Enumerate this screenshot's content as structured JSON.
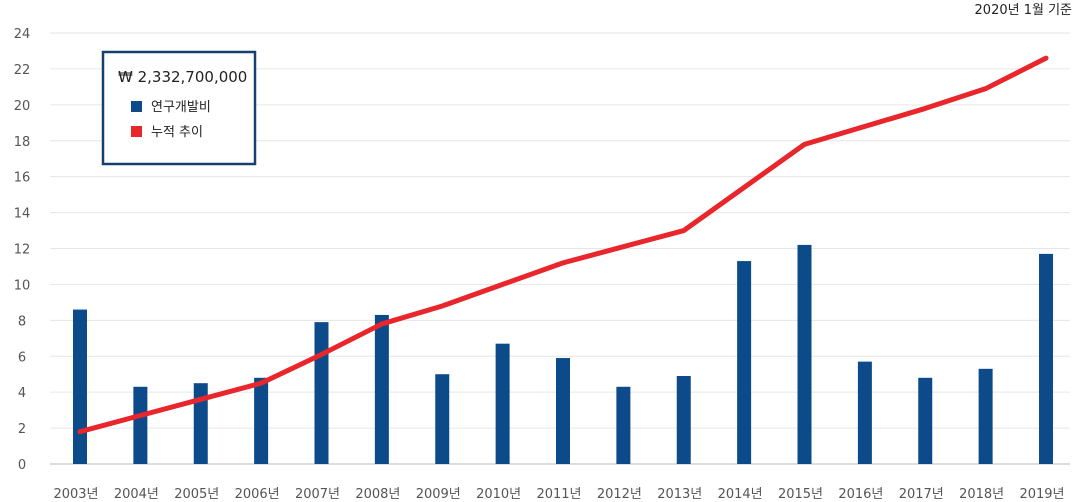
{
  "note": "2020년 1월 기준",
  "chart_data": {
    "type": "bar",
    "categories": [
      "2003년",
      "2004년",
      "2005년",
      "2006년",
      "2007년",
      "2008년",
      "2009년",
      "2010년",
      "2011년",
      "2012년",
      "2013년",
      "2014년",
      "2015년",
      "2016년",
      "2017년",
      "2018년",
      "2019년"
    ],
    "series": [
      {
        "name": "연구개발비",
        "type": "bar",
        "color": "#0d4a8a",
        "values": [
          8.6,
          4.3,
          4.5,
          4.8,
          7.9,
          8.3,
          5.0,
          6.7,
          5.9,
          4.3,
          4.9,
          11.3,
          12.2,
          5.7,
          4.8,
          5.3,
          11.7
        ]
      },
      {
        "name": "누적 추이",
        "type": "line",
        "color": "#e8262b",
        "values": [
          1.8,
          2.7,
          3.6,
          4.5,
          6.1,
          7.8,
          8.8,
          10.0,
          11.2,
          12.1,
          13.0,
          15.4,
          17.8,
          18.8,
          19.8,
          20.9,
          22.6
        ]
      }
    ],
    "ylim": [
      0,
      24
    ],
    "yticks": [
      0,
      2,
      4,
      6,
      8,
      10,
      12,
      14,
      16,
      18,
      20,
      22,
      24
    ],
    "grid": true,
    "legend": {
      "title": "₩ 2,332,700,000",
      "placement": "top-left"
    }
  }
}
